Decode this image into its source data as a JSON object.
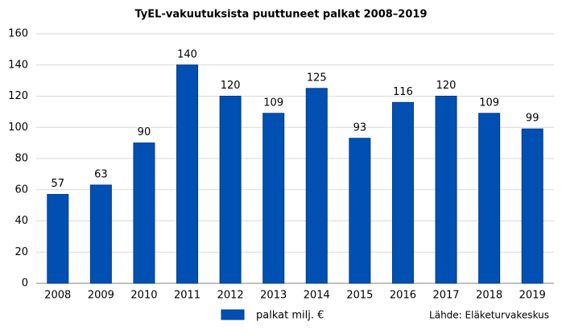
{
  "chart_data": {
    "type": "bar",
    "title": "TyEL-vakuutuksista puuttuneet palkat 2008–2019",
    "categories": [
      "2008",
      "2009",
      "2010",
      "2011",
      "2012",
      "2013",
      "2014",
      "2015",
      "2016",
      "2017",
      "2018",
      "2019"
    ],
    "series": [
      {
        "name": "palkat milj. €",
        "color": "#0050b4",
        "values": [
          57,
          63,
          90,
          140,
          120,
          109,
          125,
          93,
          116,
          120,
          109,
          99
        ]
      }
    ],
    "ylim": [
      0,
      160
    ],
    "yticks": [
      0,
      20,
      40,
      60,
      80,
      100,
      120,
      140,
      160
    ],
    "grid": true,
    "source": "Lähde: Eläketurvakeskus"
  }
}
